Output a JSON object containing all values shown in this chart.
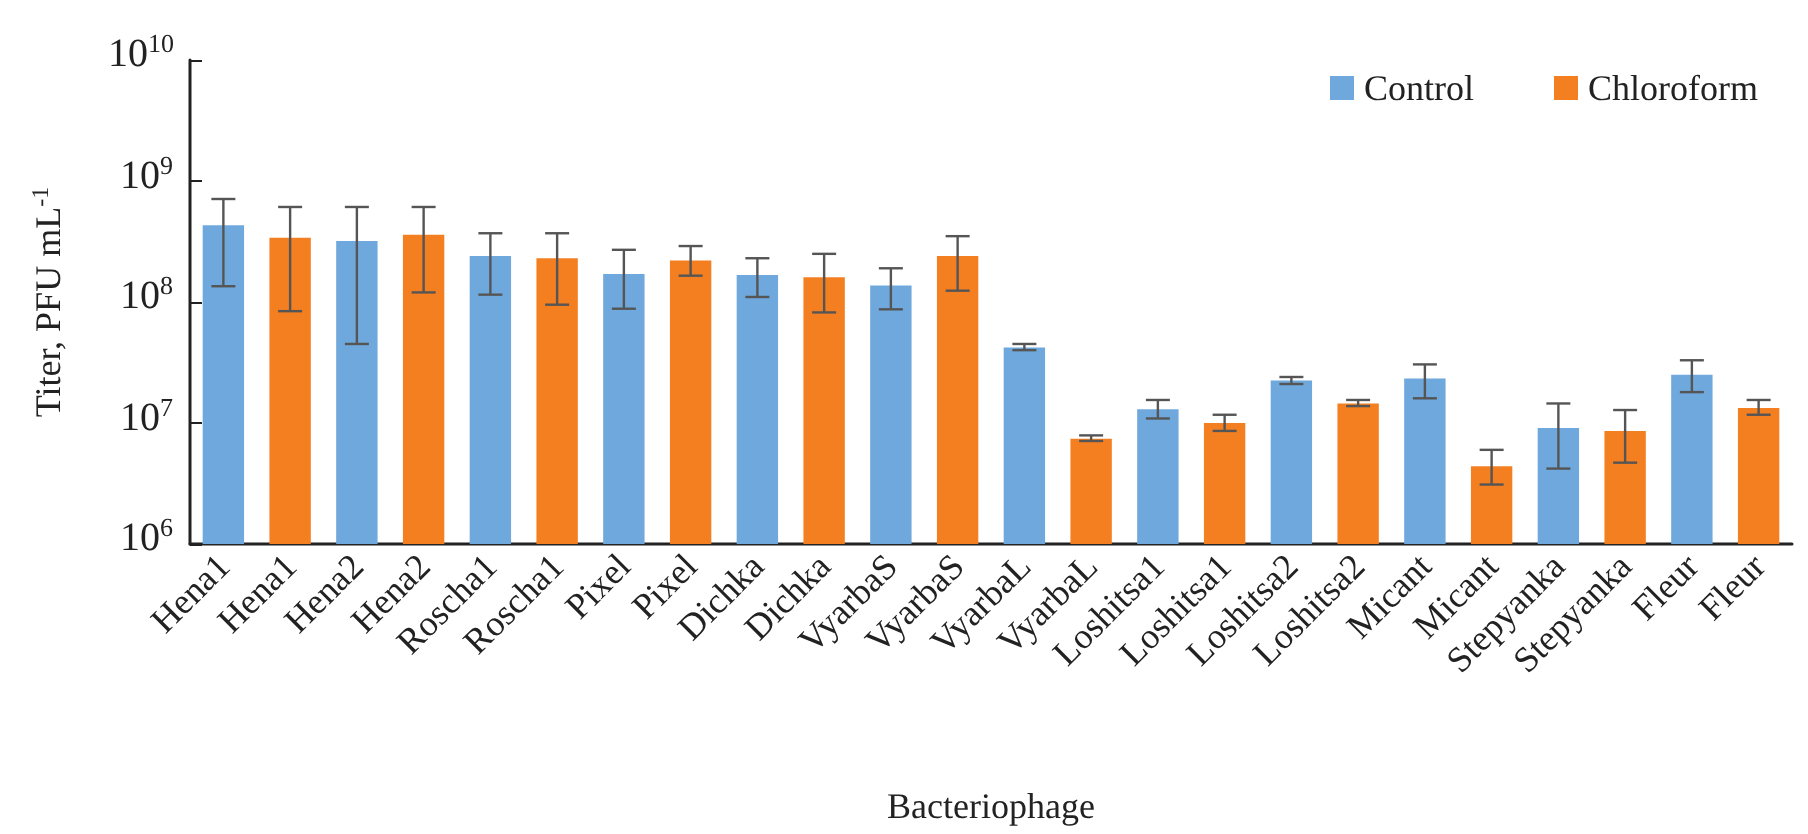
{
  "chart_data": {
    "type": "bar",
    "xlabel": "Bacteriophage",
    "ylabel": "Titer, PFU mL$^{-1}$",
    "categories": [
      "Hena1",
      "Hena1",
      "Hena2",
      "Hena2",
      "Roscha1",
      "Roscha1",
      "Pixel",
      "Pixel",
      "Dichka",
      "Dichka",
      "VyarbaS",
      "VyarbaS",
      "VyarbaL",
      "VyarbaL",
      "Loshitsa1",
      "Loshitsa1",
      "Loshitsa2",
      "Loshitsa2",
      "Micant",
      "Micant",
      "Stepyanka",
      "Stepyanka",
      "Fleur",
      "Fleur"
    ],
    "series": [
      {
        "name": "Control",
        "color": "#6fa8dc",
        "values": [
          430000000,
          null,
          320000000,
          null,
          240000000,
          null,
          170000000,
          null,
          167000000,
          null,
          137000000,
          null,
          42000000,
          null,
          13000000,
          null,
          22500000,
          null,
          23300000,
          null,
          9100000,
          null,
          25000000,
          null
        ],
        "errors": [
          [
            135000000,
            710000000
          ],
          null,
          [
            45000000,
            610000000
          ],
          null,
          [
            115000000,
            370000000
          ],
          null,
          [
            88000000,
            270000000
          ],
          null,
          [
            110000000,
            230000000
          ],
          null,
          [
            87000000,
            190000000
          ],
          null,
          [
            40000000,
            45000000
          ],
          null,
          [
            10900000,
            15500000
          ],
          null,
          [
            21000000,
            24000000
          ],
          null,
          [
            16000000,
            30500000
          ],
          null,
          [
            4200000,
            14500000
          ],
          null,
          [
            18000000,
            33000000
          ],
          null
        ]
      },
      {
        "name": "Chloroform",
        "color": "#f47f20",
        "values": [
          null,
          340000000,
          null,
          360000000,
          null,
          230000000,
          null,
          220000000,
          null,
          160000000,
          null,
          240000000,
          null,
          7400000,
          null,
          10000000,
          null,
          14500000,
          null,
          4400000,
          null,
          8600000,
          null,
          13300000
        ],
        "errors": [
          null,
          [
            84000000,
            610000000
          ],
          null,
          [
            120000000,
            610000000
          ],
          null,
          [
            95000000,
            370000000
          ],
          null,
          [
            165000000,
            290000000
          ],
          null,
          [
            82000000,
            250000000
          ],
          null,
          [
            124000000,
            350000000
          ],
          null,
          [
            7100000,
            7900000
          ],
          null,
          [
            8600000,
            11700000
          ],
          null,
          [
            13800000,
            15500000
          ],
          null,
          [
            3100000,
            6000000
          ],
          null,
          [
            4700000,
            12800000
          ],
          null,
          [
            11700000,
            15500000
          ]
        ]
      }
    ],
    "log": true,
    "ylim": [
      1000000,
      10000000000
    ],
    "yticks": [
      {
        "value": 1000000,
        "label": "10$^{6}$"
      },
      {
        "value": 10000000,
        "label": "10$^{7}$"
      },
      {
        "value": 100000000,
        "label": "10$^{8}$"
      },
      {
        "value": 1000000000,
        "label": "10$^{9}$"
      },
      {
        "value": 10000000000,
        "label": "10$^{10}$"
      }
    ],
    "grid": false,
    "legend": "top right"
  }
}
